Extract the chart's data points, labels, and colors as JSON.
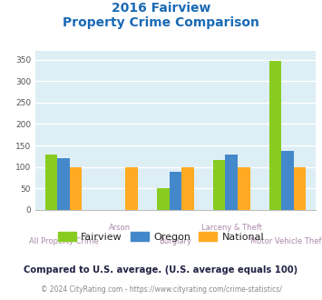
{
  "title_line1": "2016 Fairview",
  "title_line2": "Property Crime Comparison",
  "categories": [
    "All Property Crime",
    "Arson",
    "Burglary",
    "Larceny & Theft",
    "Motor Vehicle Theft"
  ],
  "fairview": [
    128,
    0,
    50,
    117,
    347
  ],
  "oregon": [
    121,
    0,
    88,
    130,
    137
  ],
  "national": [
    100,
    100,
    100,
    100,
    100
  ],
  "colors": {
    "fairview": "#88cc22",
    "oregon": "#4488cc",
    "national": "#ffaa22"
  },
  "ylim": [
    0,
    370
  ],
  "yticks": [
    0,
    50,
    100,
    150,
    200,
    250,
    300,
    350
  ],
  "bg_color": "#ddeef5",
  "grid_color": "#ffffff",
  "title_color": "#1a6ab5",
  "xlabel_color": "#aa88aa",
  "legend_text_color": "#222222",
  "footnote_color": "#222244",
  "copyright_color": "#888888",
  "copyright_link_color": "#4488cc",
  "footnote": "Compared to U.S. average. (U.S. average equals 100)",
  "copyright_text": "© 2024 CityRating.com - ",
  "copyright_link": "https://www.cityrating.com/crime-statistics/",
  "legend_labels": [
    "Fairview",
    "Oregon",
    "National"
  ],
  "bar_width": 0.22
}
